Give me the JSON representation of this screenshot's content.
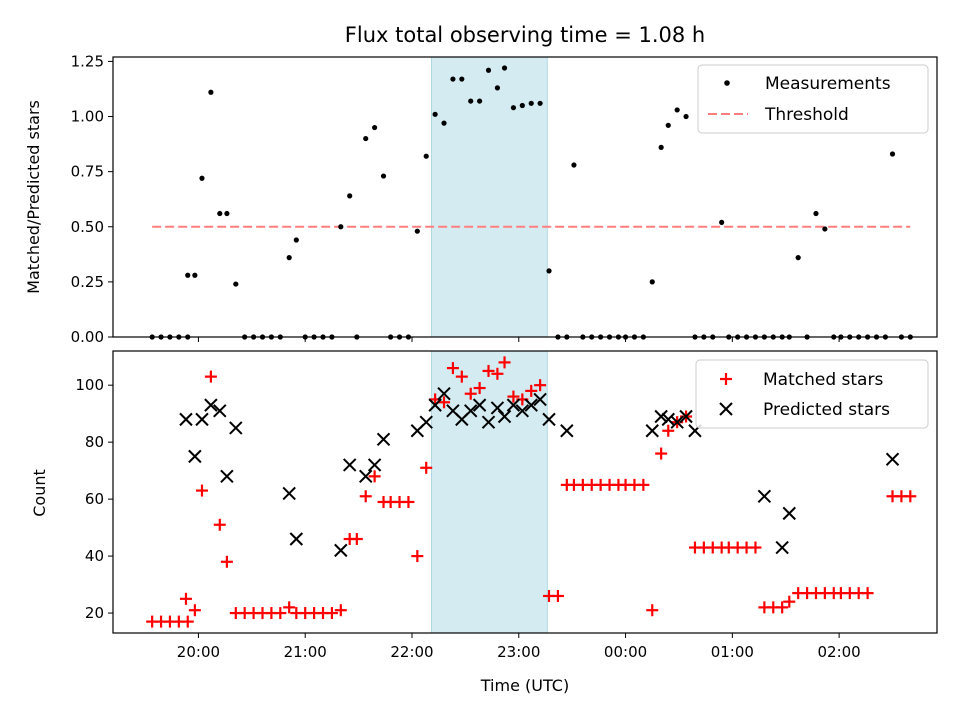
{
  "chart_data": [
    {
      "type": "scatter",
      "title": "Flux total observing time = 1.08 h",
      "ylabel": "Matched/Predicted stars",
      "xlabel": "",
      "ylim": [
        0,
        1.27
      ],
      "xlim": [
        "19:12",
        "02:55"
      ],
      "grid": false,
      "legend": "top-right",
      "x_ticks": [
        "20:00",
        "21:00",
        "22:00",
        "23:00",
        "00:00",
        "01:00",
        "02:00"
      ],
      "y_ticks": [
        "0.00",
        "0.25",
        "0.50",
        "0.75",
        "1.00",
        "1.25"
      ],
      "highlight_span": {
        "from": "22:11",
        "to": "23:16",
        "color": "#d4ebf1"
      },
      "series": [
        {
          "name": "Measurements",
          "marker": "dot",
          "color": "#000000",
          "points": [
            [
              "19:34",
              0
            ],
            [
              "19:39",
              0
            ],
            [
              "19:44",
              0
            ],
            [
              "19:49",
              0
            ],
            [
              "19:54",
              0
            ],
            [
              "19:54",
              0.28
            ],
            [
              "19:58",
              0.28
            ],
            [
              "20:02",
              0.72
            ],
            [
              "20:07",
              1.11
            ],
            [
              "20:12",
              0.56
            ],
            [
              "20:16",
              0.56
            ],
            [
              "20:21",
              0.24
            ],
            [
              "20:26",
              0
            ],
            [
              "20:31",
              0
            ],
            [
              "20:36",
              0
            ],
            [
              "20:41",
              0
            ],
            [
              "20:46",
              0
            ],
            [
              "20:51",
              0.36
            ],
            [
              "20:55",
              0.44
            ],
            [
              "21:00",
              0
            ],
            [
              "21:05",
              0
            ],
            [
              "21:10",
              0
            ],
            [
              "21:15",
              0
            ],
            [
              "21:20",
              0.5
            ],
            [
              "21:25",
              0.64
            ],
            [
              "21:29",
              0
            ],
            [
              "21:34",
              0.9
            ],
            [
              "21:39",
              0.95
            ],
            [
              "21:44",
              0.73
            ],
            [
              "21:48",
              0
            ],
            [
              "21:53",
              0
            ],
            [
              "21:58",
              0
            ],
            [
              "22:03",
              0.48
            ],
            [
              "22:08",
              0.82
            ],
            [
              "22:13",
              1.01
            ],
            [
              "22:18",
              0.97
            ],
            [
              "22:23",
              1.17
            ],
            [
              "22:28",
              1.17
            ],
            [
              "22:33",
              1.07
            ],
            [
              "22:38",
              1.07
            ],
            [
              "22:43",
              1.21
            ],
            [
              "22:48",
              1.13
            ],
            [
              "22:52",
              1.22
            ],
            [
              "22:57",
              1.04
            ],
            [
              "23:02",
              1.05
            ],
            [
              "23:07",
              1.06
            ],
            [
              "23:12",
              1.06
            ],
            [
              "23:17",
              0.3
            ],
            [
              "23:22",
              0
            ],
            [
              "23:27",
              0
            ],
            [
              "23:31",
              0.78
            ],
            [
              "23:36",
              0
            ],
            [
              "23:41",
              0
            ],
            [
              "23:46",
              0
            ],
            [
              "23:51",
              0
            ],
            [
              "23:56",
              0
            ],
            [
              "00:00",
              0
            ],
            [
              "00:05",
              0
            ],
            [
              "00:10",
              0
            ],
            [
              "00:15",
              0.25
            ],
            [
              "00:20",
              0.86
            ],
            [
              "00:24",
              0.96
            ],
            [
              "00:29",
              1.03
            ],
            [
              "00:34",
              1.0
            ],
            [
              "00:39",
              0
            ],
            [
              "00:44",
              0
            ],
            [
              "00:49",
              0
            ],
            [
              "00:54",
              0.52
            ],
            [
              "00:58",
              0
            ],
            [
              "01:03",
              0
            ],
            [
              "01:08",
              0
            ],
            [
              "01:13",
              0
            ],
            [
              "01:18",
              0
            ],
            [
              "01:23",
              0
            ],
            [
              "01:28",
              0
            ],
            [
              "01:32",
              0
            ],
            [
              "01:37",
              0.36
            ],
            [
              "01:42",
              0
            ],
            [
              "01:47",
              0.56
            ],
            [
              "01:52",
              0.49
            ],
            [
              "01:57",
              0
            ],
            [
              "02:01",
              0
            ],
            [
              "02:06",
              0
            ],
            [
              "02:11",
              0
            ],
            [
              "02:16",
              0
            ],
            [
              "02:21",
              0
            ],
            [
              "02:26",
              0
            ],
            [
              "02:30",
              0.83
            ],
            [
              "02:35",
              0
            ],
            [
              "02:40",
              0
            ]
          ]
        },
        {
          "name": "Threshold",
          "marker": "dashed-line",
          "color": "#ff7f7f",
          "points": [
            [
              "19:34",
              0.5
            ],
            [
              "02:40",
              0.5
            ]
          ]
        }
      ]
    },
    {
      "type": "scatter",
      "title": "",
      "ylabel": "Count",
      "xlabel": "Time (UTC)",
      "ylim": [
        13,
        112
      ],
      "xlim": [
        "19:12",
        "02:55"
      ],
      "grid": false,
      "legend": "top-right",
      "x_ticks": [
        "20:00",
        "21:00",
        "22:00",
        "23:00",
        "00:00",
        "01:00",
        "02:00"
      ],
      "y_ticks": [
        "20",
        "40",
        "60",
        "80",
        "100"
      ],
      "highlight_span": {
        "from": "22:11",
        "to": "23:16",
        "color": "#d4ebf1"
      },
      "series": [
        {
          "name": "Matched stars",
          "marker": "plus",
          "color": "#ff0000",
          "points": [
            [
              "19:34",
              17
            ],
            [
              "19:39",
              17
            ],
            [
              "19:44",
              17
            ],
            [
              "19:49",
              17
            ],
            [
              "19:54",
              17
            ],
            [
              "19:53",
              25
            ],
            [
              "19:58",
              21
            ],
            [
              "20:02",
              63
            ],
            [
              "20:07",
              103
            ],
            [
              "20:12",
              51
            ],
            [
              "20:16",
              38
            ],
            [
              "20:21",
              20
            ],
            [
              "20:26",
              20
            ],
            [
              "20:31",
              20
            ],
            [
              "20:36",
              20
            ],
            [
              "20:41",
              20
            ],
            [
              "20:46",
              20
            ],
            [
              "20:51",
              22
            ],
            [
              "20:55",
              20
            ],
            [
              "21:00",
              20
            ],
            [
              "21:05",
              20
            ],
            [
              "21:10",
              20
            ],
            [
              "21:15",
              20
            ],
            [
              "21:20",
              21
            ],
            [
              "21:25",
              46
            ],
            [
              "21:29",
              46
            ],
            [
              "21:34",
              61
            ],
            [
              "21:39",
              68
            ],
            [
              "21:44",
              59
            ],
            [
              "21:48",
              59
            ],
            [
              "21:53",
              59
            ],
            [
              "21:58",
              59
            ],
            [
              "22:03",
              40
            ],
            [
              "22:08",
              71
            ],
            [
              "22:13",
              95
            ],
            [
              "22:18",
              94
            ],
            [
              "22:23",
              106
            ],
            [
              "22:28",
              103
            ],
            [
              "22:33",
              97
            ],
            [
              "22:38",
              99
            ],
            [
              "22:43",
              105
            ],
            [
              "22:48",
              104
            ],
            [
              "22:52",
              108
            ],
            [
              "22:57",
              96
            ],
            [
              "23:02",
              95
            ],
            [
              "23:07",
              98
            ],
            [
              "23:12",
              100
            ],
            [
              "23:17",
              26
            ],
            [
              "23:22",
              26
            ],
            [
              "23:27",
              65
            ],
            [
              "23:31",
              65
            ],
            [
              "23:36",
              65
            ],
            [
              "23:41",
              65
            ],
            [
              "23:46",
              65
            ],
            [
              "23:51",
              65
            ],
            [
              "23:56",
              65
            ],
            [
              "00:00",
              65
            ],
            [
              "00:05",
              65
            ],
            [
              "00:10",
              65
            ],
            [
              "00:15",
              21
            ],
            [
              "00:20",
              76
            ],
            [
              "00:24",
              84
            ],
            [
              "00:29",
              87
            ],
            [
              "00:34",
              89
            ],
            [
              "00:39",
              43
            ],
            [
              "00:44",
              43
            ],
            [
              "00:49",
              43
            ],
            [
              "00:54",
              43
            ],
            [
              "00:58",
              43
            ],
            [
              "01:03",
              43
            ],
            [
              "01:08",
              43
            ],
            [
              "01:13",
              43
            ],
            [
              "01:18",
              22
            ],
            [
              "01:23",
              22
            ],
            [
              "01:28",
              22
            ],
            [
              "01:32",
              24
            ],
            [
              "01:37",
              27
            ],
            [
              "01:42",
              27
            ],
            [
              "01:47",
              27
            ],
            [
              "01:52",
              27
            ],
            [
              "01:57",
              27
            ],
            [
              "02:01",
              27
            ],
            [
              "02:06",
              27
            ],
            [
              "02:11",
              27
            ],
            [
              "02:16",
              27
            ],
            [
              "02:30",
              61
            ],
            [
              "02:35",
              61
            ],
            [
              "02:40",
              61
            ]
          ]
        },
        {
          "name": "Predicted stars",
          "marker": "x",
          "color": "#000000",
          "points": [
            [
              "19:53",
              88
            ],
            [
              "19:58",
              75
            ],
            [
              "20:02",
              88
            ],
            [
              "20:07",
              93
            ],
            [
              "20:12",
              91
            ],
            [
              "20:16",
              68
            ],
            [
              "20:21",
              85
            ],
            [
              "20:51",
              62
            ],
            [
              "20:55",
              46
            ],
            [
              "21:20",
              42
            ],
            [
              "21:25",
              72
            ],
            [
              "21:34",
              68
            ],
            [
              "21:39",
              72
            ],
            [
              "21:44",
              81
            ],
            [
              "22:03",
              84
            ],
            [
              "22:08",
              87
            ],
            [
              "22:13",
              93
            ],
            [
              "22:18",
              97
            ],
            [
              "22:23",
              91
            ],
            [
              "22:28",
              88
            ],
            [
              "22:33",
              91
            ],
            [
              "22:38",
              93
            ],
            [
              "22:43",
              87
            ],
            [
              "22:48",
              92
            ],
            [
              "22:52",
              89
            ],
            [
              "22:57",
              93
            ],
            [
              "23:02",
              91
            ],
            [
              "23:07",
              93
            ],
            [
              "23:12",
              95
            ],
            [
              "23:17",
              88
            ],
            [
              "23:27",
              84
            ],
            [
              "00:15",
              84
            ],
            [
              "00:20",
              89
            ],
            [
              "00:24",
              88
            ],
            [
              "00:29",
              87
            ],
            [
              "00:34",
              89
            ],
            [
              "00:39",
              84
            ],
            [
              "01:18",
              61
            ],
            [
              "01:28",
              43
            ],
            [
              "01:32",
              55
            ],
            [
              "02:30",
              74
            ]
          ]
        }
      ]
    }
  ]
}
